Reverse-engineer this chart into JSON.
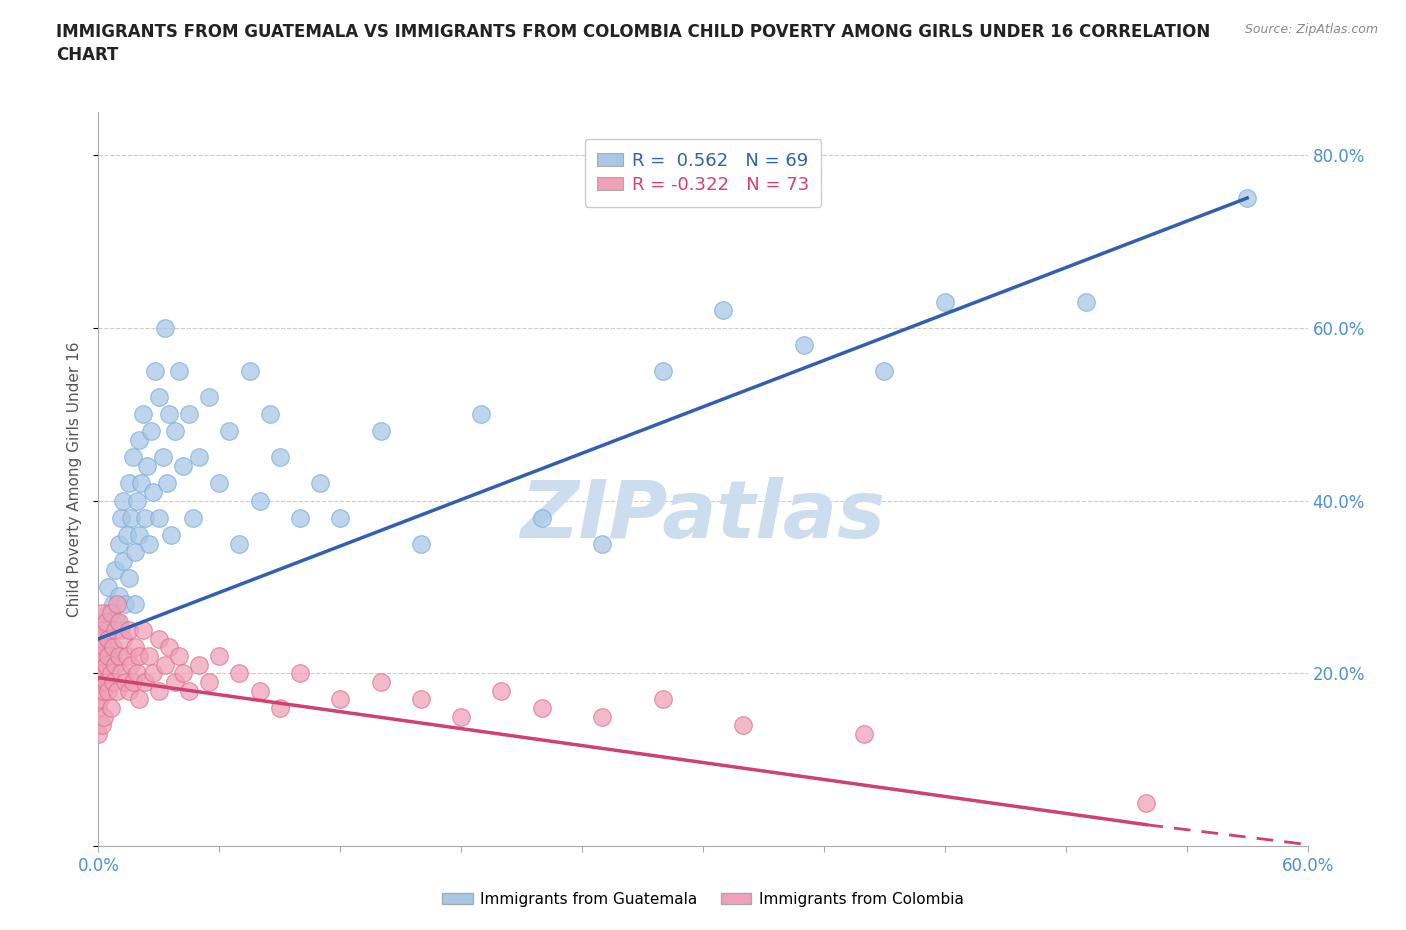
{
  "title": "IMMIGRANTS FROM GUATEMALA VS IMMIGRANTS FROM COLOMBIA CHILD POVERTY AMONG GIRLS UNDER 16 CORRELATION\nCHART",
  "source_text": "Source: ZipAtlas.com",
  "ylabel": "Child Poverty Among Girls Under 16",
  "xlim": [
    0.0,
    0.6
  ],
  "ylim": [
    0.0,
    0.85
  ],
  "xticks": [
    0.0,
    0.06,
    0.12,
    0.18,
    0.24,
    0.3,
    0.36,
    0.42,
    0.48,
    0.54,
    0.6
  ],
  "ytick_positions": [
    0.0,
    0.2,
    0.4,
    0.6,
    0.8
  ],
  "R_guatemala": 0.562,
  "N_guatemala": 69,
  "R_colombia": -0.322,
  "N_colombia": 73,
  "guatemala_color": "#a8c8e8",
  "guatemala_edge": "#7aaad4",
  "colombia_color": "#f0a0b8",
  "colombia_edge": "#d87090",
  "trend_guatemala_color": "#3060b0",
  "trend_colombia_color": "#d04070",
  "watermark": "ZIPatlas",
  "watermark_color": "#ccddf0",
  "grid_color": "#cccccc",
  "background_color": "#ffffff",
  "tick_color": "#4a90d9",
  "title_color": "#222222",
  "ylabel_color": "#555555",
  "guatemala_points_x": [
    0.005,
    0.005,
    0.005,
    0.005,
    0.007,
    0.007,
    0.008,
    0.009,
    0.01,
    0.01,
    0.011,
    0.011,
    0.012,
    0.012,
    0.013,
    0.014,
    0.015,
    0.015,
    0.016,
    0.017,
    0.018,
    0.018,
    0.019,
    0.02,
    0.02,
    0.021,
    0.022,
    0.023,
    0.024,
    0.025,
    0.026,
    0.027,
    0.028,
    0.03,
    0.03,
    0.032,
    0.033,
    0.034,
    0.035,
    0.036,
    0.038,
    0.04,
    0.042,
    0.045,
    0.047,
    0.05,
    0.055,
    0.06,
    0.065,
    0.07,
    0.075,
    0.08,
    0.085,
    0.09,
    0.1,
    0.11,
    0.12,
    0.14,
    0.16,
    0.19,
    0.22,
    0.25,
    0.28,
    0.31,
    0.35,
    0.39,
    0.42,
    0.49,
    0.57
  ],
  "guatemala_points_y": [
    0.25,
    0.27,
    0.3,
    0.23,
    0.28,
    0.22,
    0.32,
    0.26,
    0.35,
    0.29,
    0.38,
    0.25,
    0.33,
    0.4,
    0.28,
    0.36,
    0.42,
    0.31,
    0.38,
    0.45,
    0.34,
    0.28,
    0.4,
    0.47,
    0.36,
    0.42,
    0.5,
    0.38,
    0.44,
    0.35,
    0.48,
    0.41,
    0.55,
    0.38,
    0.52,
    0.45,
    0.6,
    0.42,
    0.5,
    0.36,
    0.48,
    0.55,
    0.44,
    0.5,
    0.38,
    0.45,
    0.52,
    0.42,
    0.48,
    0.35,
    0.55,
    0.4,
    0.5,
    0.45,
    0.38,
    0.42,
    0.38,
    0.48,
    0.35,
    0.5,
    0.38,
    0.35,
    0.55,
    0.62,
    0.58,
    0.55,
    0.63,
    0.63,
    0.75
  ],
  "colombia_points_x": [
    0.0,
    0.0,
    0.0,
    0.0,
    0.0,
    0.001,
    0.001,
    0.001,
    0.002,
    0.002,
    0.002,
    0.003,
    0.003,
    0.003,
    0.004,
    0.004,
    0.004,
    0.005,
    0.005,
    0.005,
    0.006,
    0.006,
    0.006,
    0.007,
    0.007,
    0.008,
    0.008,
    0.009,
    0.009,
    0.01,
    0.01,
    0.011,
    0.012,
    0.013,
    0.014,
    0.015,
    0.015,
    0.016,
    0.017,
    0.018,
    0.019,
    0.02,
    0.02,
    0.022,
    0.023,
    0.025,
    0.027,
    0.03,
    0.03,
    0.033,
    0.035,
    0.038,
    0.04,
    0.042,
    0.045,
    0.05,
    0.055,
    0.06,
    0.07,
    0.08,
    0.09,
    0.1,
    0.12,
    0.14,
    0.16,
    0.18,
    0.2,
    0.22,
    0.25,
    0.28,
    0.32,
    0.38,
    0.52
  ],
  "colombia_points_y": [
    0.2,
    0.16,
    0.24,
    0.13,
    0.19,
    0.22,
    0.17,
    0.25,
    0.14,
    0.2,
    0.27,
    0.18,
    0.23,
    0.15,
    0.21,
    0.26,
    0.19,
    0.24,
    0.18,
    0.22,
    0.2,
    0.27,
    0.16,
    0.23,
    0.19,
    0.25,
    0.21,
    0.28,
    0.18,
    0.22,
    0.26,
    0.2,
    0.24,
    0.19,
    0.22,
    0.25,
    0.18,
    0.21,
    0.19,
    0.23,
    0.2,
    0.22,
    0.17,
    0.25,
    0.19,
    0.22,
    0.2,
    0.24,
    0.18,
    0.21,
    0.23,
    0.19,
    0.22,
    0.2,
    0.18,
    0.21,
    0.19,
    0.22,
    0.2,
    0.18,
    0.16,
    0.2,
    0.17,
    0.19,
    0.17,
    0.15,
    0.18,
    0.16,
    0.15,
    0.17,
    0.14,
    0.13,
    0.05
  ],
  "trend_g_x0": 0.0,
  "trend_g_y0": 0.24,
  "trend_g_x1": 0.57,
  "trend_g_y1": 0.75,
  "trend_c_x0": 0.0,
  "trend_c_y0": 0.195,
  "trend_c_x1": 0.52,
  "trend_c_y1": 0.025,
  "trend_c_dash_x0": 0.52,
  "trend_c_dash_y0": 0.025,
  "trend_c_dash_x1": 0.6,
  "trend_c_dash_y1": 0.002
}
